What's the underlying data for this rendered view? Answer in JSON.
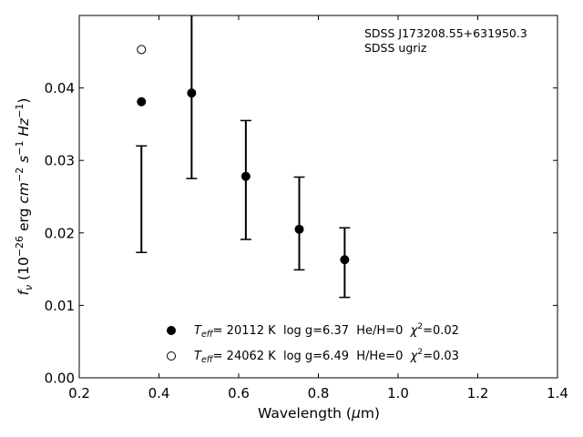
{
  "chart_data": {
    "type": "scatter",
    "xlabel_text": "Wavelength (",
    "xlabel_mu": "μ",
    "xlabel_unit": "m)",
    "ylabel": {
      "f": "f",
      "nu": "ν",
      "open": " (10",
      "exp26": "−26",
      "erg": " erg ",
      "cm": "cm",
      "expm2": "−2",
      "s": "s",
      "expm1a": "−1",
      "hz": "Hz",
      "expm1b": "−1",
      "close": ")"
    },
    "xlim": [
      0.2,
      1.4
    ],
    "ylim": [
      0.0,
      0.05
    ],
    "xticks": [
      "0.2",
      "0.4",
      "0.6",
      "0.8",
      "1.0",
      "1.2",
      "1.4"
    ],
    "yticks": [
      "0.00",
      "0.01",
      "0.02",
      "0.03",
      "0.04"
    ],
    "annotation": [
      "SDSS J173208.55+631950.3",
      "SDSS ugriz"
    ],
    "observed": {
      "x": [
        0.356,
        0.482,
        0.618,
        0.752,
        0.866
      ],
      "y_upper": [
        0.032,
        0.05,
        0.0355,
        0.0277,
        0.0207
      ],
      "y_lower": [
        0.0173,
        0.0275,
        0.0191,
        0.0149,
        0.0111
      ]
    },
    "series": [
      {
        "marker": "filled",
        "x": [
          0.356,
          0.482,
          0.618,
          0.752,
          0.866
        ],
        "y": [
          0.0381,
          0.0393,
          0.0278,
          0.0205,
          0.0163
        ]
      },
      {
        "marker": "open",
        "x": [
          0.356
        ],
        "y": [
          0.0453
        ]
      }
    ],
    "legend": [
      {
        "marker": "filled",
        "T": "T",
        "eff": "eff",
        "text": "= 20112 K  log g=6.37  He/H=0  ",
        "chi": "χ",
        "two": "2",
        "chival": "=0.02"
      },
      {
        "marker": "open",
        "T": "T",
        "eff": "eff",
        "text": "= 24062 K  log g=6.49  H/He=0  ",
        "chi": "χ",
        "two": "2",
        "chival": "=0.03"
      }
    ],
    "legend_position": "lower-center",
    "grid": false
  }
}
